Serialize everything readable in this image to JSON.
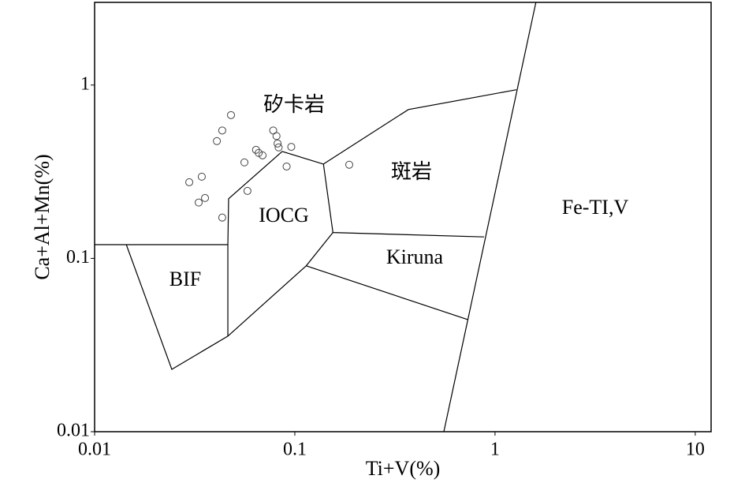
{
  "chart_data": {
    "type": "scatter",
    "x_label": "Ti+V(%)",
    "y_label": "Ca+Al+Mn(%)",
    "x_scale": "log",
    "y_scale": "log",
    "xlim": [
      0.01,
      12
    ],
    "ylim": [
      0.01,
      3
    ],
    "xticks": [
      0.01,
      0.1,
      1,
      10
    ],
    "yticks": [
      0.01,
      0.1,
      1
    ],
    "x": [
      0.0297,
      0.0343,
      0.0331,
      0.0356,
      0.0434,
      0.0408,
      0.0434,
      0.048,
      0.056,
      0.058,
      0.064,
      0.066,
      0.069,
      0.078,
      0.081,
      0.082,
      0.083,
      0.091,
      0.096,
      0.187
    ],
    "values": [
      0.275,
      0.296,
      0.21,
      0.223,
      0.172,
      0.475,
      0.547,
      0.671,
      0.358,
      0.245,
      0.423,
      0.406,
      0.393,
      0.547,
      0.508,
      0.46,
      0.437,
      0.339,
      0.44,
      0.347
    ],
    "marker_color": "#444444",
    "boundaries": [
      {
        "x": [
          0.01,
          0.0463
        ],
        "y": [
          0.12,
          0.12
        ]
      },
      {
        "x": [
          0.0144,
          0.0243,
          0.0463,
          0.0463
        ],
        "y": [
          0.12,
          0.0229,
          0.0356,
          0.12
        ]
      },
      {
        "x": [
          0.0463,
          0.0467,
          0.0865,
          0.139,
          0.155,
          0.881
        ],
        "y": [
          0.12,
          0.221,
          0.414,
          0.35,
          0.141,
          0.133
        ]
      },
      {
        "x": [
          0.0463,
          0.114,
          0.155
        ],
        "y": [
          0.0356,
          0.0906,
          0.141
        ]
      },
      {
        "x": [
          0.114,
          0.728
        ],
        "y": [
          0.0906,
          0.0444
        ]
      },
      {
        "x": [
          0.139,
          0.369,
          1.28
        ],
        "y": [
          0.35,
          0.722,
          0.94
        ]
      },
      {
        "x": [
          0.555,
          1.6
        ],
        "y": [
          0.01,
          3
        ]
      }
    ],
    "line_color": "#000000",
    "annotations": [
      "矽卡岩",
      "斑岩",
      "IOCG",
      "Fe-TI,V",
      "Kiruna",
      "BIF"
    ]
  }
}
